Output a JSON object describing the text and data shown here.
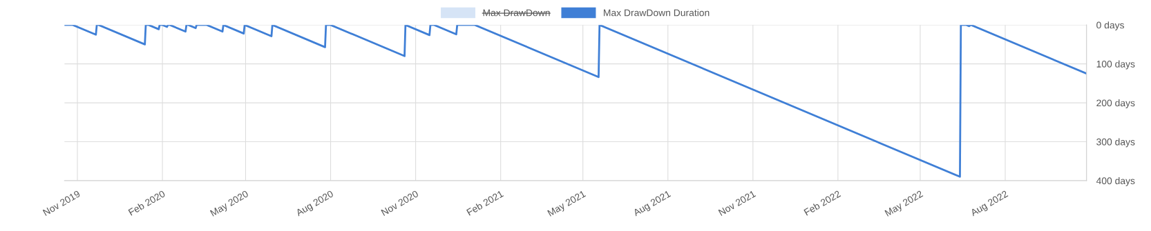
{
  "chart_data": {
    "type": "line",
    "x": [
      "2019-10-18",
      "2019-10-27",
      "2019-11-21",
      "2019-11-22",
      "2019-11-24",
      "2020-01-13",
      "2020-01-14",
      "2020-01-17",
      "2020-01-28",
      "2020-01-29",
      "2020-02-01",
      "2020-02-06",
      "2020-02-07",
      "2020-02-09",
      "2020-02-26",
      "2020-02-27",
      "2020-02-29",
      "2020-03-08",
      "2020-03-09",
      "2020-03-20",
      "2020-04-06",
      "2020-04-07",
      "2020-04-29",
      "2020-04-30",
      "2020-05-29",
      "2020-05-30",
      "2020-07-26",
      "2020-07-27",
      "2020-08-01",
      "2020-10-20",
      "2020-10-21",
      "2020-11-16",
      "2020-11-17",
      "2020-11-21",
      "2020-12-15",
      "2020-12-16",
      "2021-01-04",
      "2021-05-18",
      "2021-05-19",
      "2022-06-13",
      "2022-06-14",
      "2022-06-20",
      "2022-06-23",
      "2022-06-25",
      "2022-10-28"
    ],
    "series": [
      {
        "name": "Max DrawDown",
        "color": "#d6e4f6",
        "values": [
          null,
          null,
          null,
          null,
          null,
          null,
          null,
          null,
          null,
          null,
          null,
          null,
          null,
          null,
          null,
          null,
          null,
          null,
          null,
          null,
          null,
          null,
          null,
          null,
          null,
          null,
          null,
          null,
          null,
          null,
          null,
          null,
          null,
          null,
          null,
          null,
          null,
          null,
          null,
          null,
          null,
          null,
          null,
          null,
          null
        ]
      },
      {
        "name": "Max DrawDown Duration",
        "color": "#3f7fd6",
        "values": [
          0,
          0,
          25,
          0,
          0,
          50,
          0,
          0,
          11,
          0,
          0,
          5,
          0,
          0,
          17,
          0,
          0,
          8,
          0,
          0,
          17,
          0,
          22,
          0,
          29,
          0,
          57,
          0,
          0,
          80,
          0,
          26,
          0,
          0,
          24,
          0,
          0,
          134,
          0,
          390,
          0,
          0,
          3,
          0,
          125
        ]
      }
    ],
    "xlim": [
      "2019-10-18",
      "2022-10-28"
    ],
    "xticks": [
      {
        "value": "2019-11-01",
        "label": "Nov 2019"
      },
      {
        "value": "2020-02-01",
        "label": "Feb 2020"
      },
      {
        "value": "2020-05-01",
        "label": "May 2020"
      },
      {
        "value": "2020-08-01",
        "label": "Aug 2020"
      },
      {
        "value": "2020-11-01",
        "label": "Nov 2020"
      },
      {
        "value": "2021-02-01",
        "label": "Feb 2021"
      },
      {
        "value": "2021-05-01",
        "label": "May 2021"
      },
      {
        "value": "2021-08-01",
        "label": "Aug 2021"
      },
      {
        "value": "2021-11-01",
        "label": "Nov 2021"
      },
      {
        "value": "2022-02-01",
        "label": "Feb 2022"
      },
      {
        "value": "2022-05-01",
        "label": "May 2022"
      },
      {
        "value": "2022-08-01",
        "label": "Aug 2022"
      }
    ],
    "ylim": [
      400,
      0
    ],
    "yticks": [
      {
        "value": 0,
        "label": "0 days"
      },
      {
        "value": 100,
        "label": "100 days"
      },
      {
        "value": 200,
        "label": "200 days"
      },
      {
        "value": 300,
        "label": "300 days"
      },
      {
        "value": 400,
        "label": "400 days"
      }
    ],
    "grid": true,
    "legend": "top",
    "marker": "none",
    "line_style": "solid"
  }
}
